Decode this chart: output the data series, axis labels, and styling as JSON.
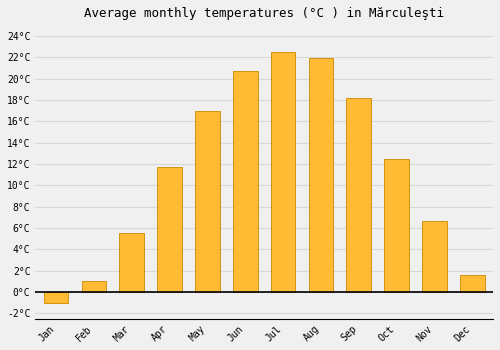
{
  "title": "Average monthly temperatures (°C ) in Mărculeşti",
  "months": [
    "Jan",
    "Feb",
    "Mar",
    "Apr",
    "May",
    "Jun",
    "Jul",
    "Aug",
    "Sep",
    "Oct",
    "Nov",
    "Dec"
  ],
  "temperatures": [
    -1.0,
    1.0,
    5.5,
    11.7,
    17.0,
    20.7,
    22.5,
    21.9,
    18.2,
    12.5,
    6.7,
    1.6
  ],
  "bar_color": "#FFBB33",
  "bar_edge_color": "#CC8800",
  "ylim": [
    -2.5,
    25
  ],
  "yticks": [
    -2,
    0,
    2,
    4,
    6,
    8,
    10,
    12,
    14,
    16,
    18,
    20,
    22,
    24
  ],
  "ytick_labels": [
    "-2°C",
    "0°C",
    "2°C",
    "4°C",
    "6°C",
    "8°C",
    "10°C",
    "12°C",
    "14°C",
    "16°C",
    "18°C",
    "20°C",
    "22°C",
    "24°C"
  ],
  "background_color": "#f0f0f0",
  "grid_color": "#d8d8d8",
  "title_fontsize": 9,
  "tick_fontsize": 7,
  "bar_width": 0.65
}
